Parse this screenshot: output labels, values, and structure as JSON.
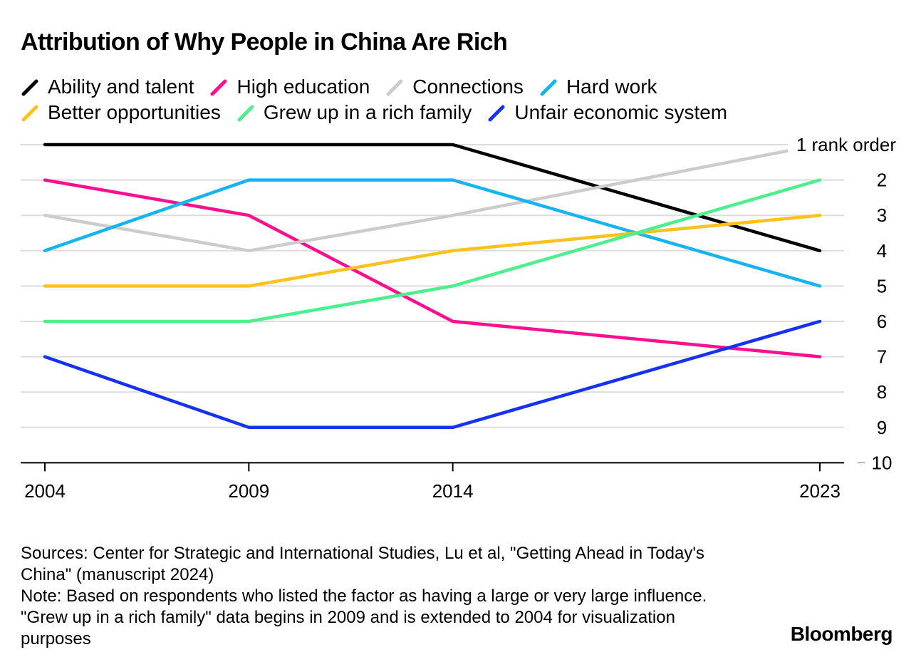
{
  "chart_data": {
    "type": "line",
    "title": "Attribution of Why People in China Are Rich",
    "x": [
      2004,
      2009,
      2014,
      2023
    ],
    "x_tick_labels": [
      "2004",
      "2009",
      "2014",
      "2023"
    ],
    "y_axis": {
      "reversed": true,
      "ylim": [
        1,
        10
      ],
      "tick_labels": [
        "1 rank order",
        "2",
        "3",
        "4",
        "5",
        "6",
        "7",
        "8",
        "9",
        "10"
      ],
      "position": "right"
    },
    "grid": true,
    "legend_position": "top",
    "series": [
      {
        "name": "Ability and talent",
        "color": "#000000",
        "values": [
          1,
          1,
          1,
          4
        ]
      },
      {
        "name": "High education",
        "color": "#ff0f8f",
        "values": [
          2,
          3,
          6,
          7
        ]
      },
      {
        "name": "Connections",
        "color": "#cccccc",
        "values": [
          3,
          4,
          3,
          1
        ]
      },
      {
        "name": "Hard work",
        "color": "#14b4f0",
        "values": [
          4,
          2,
          2,
          5
        ]
      },
      {
        "name": "Better opportunities",
        "color": "#ffc11a",
        "values": [
          5,
          5,
          4,
          3
        ]
      },
      {
        "name": "Grew up in a rich family",
        "color": "#4bf08c",
        "values": [
          6,
          6,
          5,
          2
        ]
      },
      {
        "name": "Unfair economic system",
        "color": "#1432f0",
        "values": [
          7,
          9,
          9,
          6
        ]
      }
    ]
  },
  "footer": {
    "sources": "Sources: Center for Strategic and International Studies, Lu et al, \"Getting Ahead in Today's China\" (manuscript 2024)",
    "note": "Note: Based on respondents who listed the factor as having a large or very large influence. \"Grew up in a rich family\" data begins in 2009 and is extended to 2004 for visualization purposes",
    "brand": "Bloomberg"
  }
}
